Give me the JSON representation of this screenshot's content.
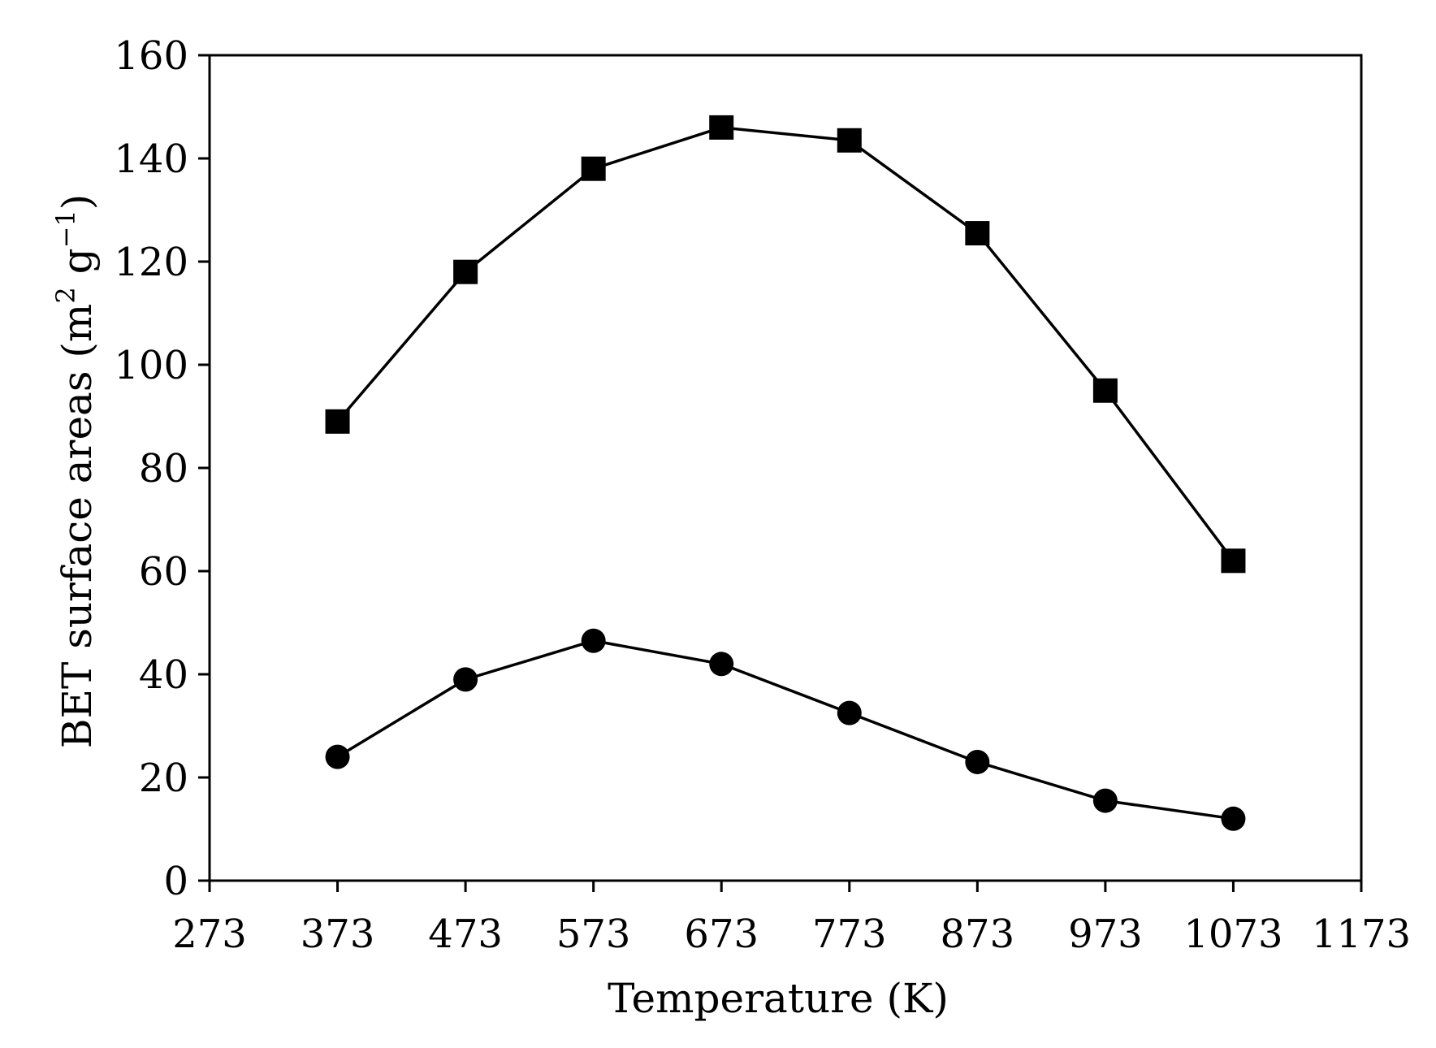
{
  "chart_data": {
    "type": "line",
    "title": "",
    "xlabel": "Temperature (K)",
    "ylabel_main": "BET surface areas (m",
    "ylabel_sup1": "2",
    "ylabel_mid": " g",
    "ylabel_sup2": "−1",
    "ylabel_end": ")",
    "xlim": [
      273,
      1173
    ],
    "ylim": [
      0,
      160
    ],
    "xticks": [
      273,
      373,
      473,
      573,
      673,
      773,
      873,
      973,
      1073,
      1173
    ],
    "yticks": [
      0,
      20,
      40,
      60,
      80,
      100,
      120,
      140,
      160
    ],
    "grid": false,
    "legend": "none",
    "colors": {
      "line": "#000000",
      "marker": "#000000",
      "axis": "#000000"
    },
    "series": [
      {
        "marker": "square",
        "x": [
          373,
          473,
          573,
          673,
          773,
          873,
          973,
          1073
        ],
        "y": [
          89,
          118,
          138,
          146,
          143.5,
          125.5,
          95,
          62
        ]
      },
      {
        "marker": "circle",
        "x": [
          373,
          473,
          573,
          673,
          773,
          873,
          973,
          1073
        ],
        "y": [
          24,
          39,
          46.5,
          42,
          32.5,
          23,
          15.5,
          12
        ]
      }
    ]
  }
}
